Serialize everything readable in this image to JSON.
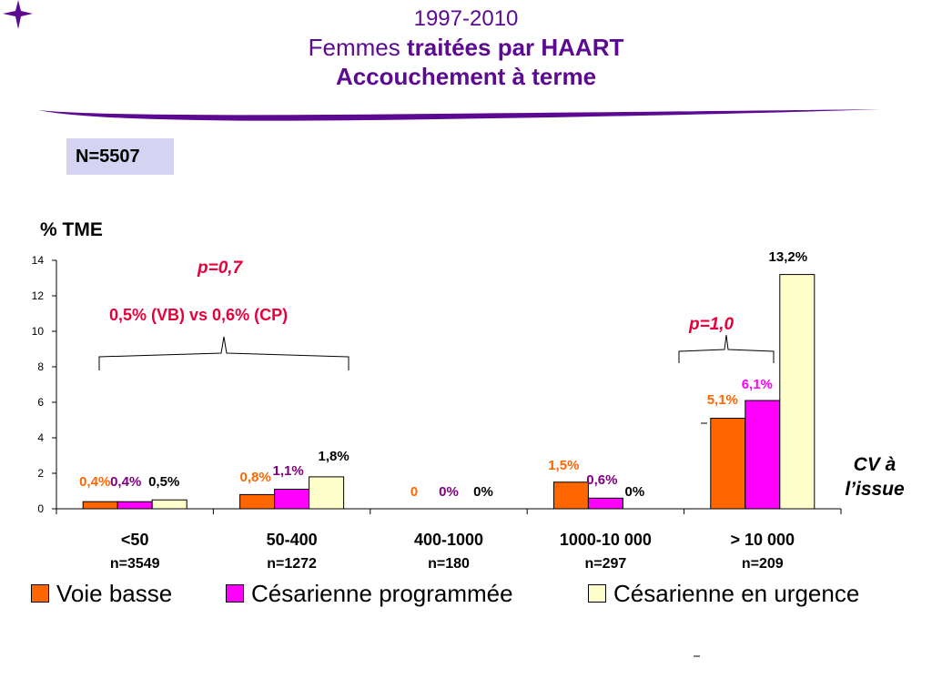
{
  "slide": {
    "title_line1": "1997-2010",
    "title_line2_plain": "Femmes ",
    "title_line2_bold": "traitées par HAART",
    "title_line3": "Accouchement à terme",
    "n_total": "N=5507",
    "cv_label_line1": "CV à",
    "cv_label_line2": "l’issue",
    "accent_color": "#5b0a91"
  },
  "annotations": {
    "p_left": "p=0,7",
    "vb_vs_cp": "0,5% (VB) vs 0,6% (CP)",
    "p_right": "p=1,0"
  },
  "chart_data": {
    "type": "bar",
    "ylabel": "% TME",
    "ylim": [
      0,
      14
    ],
    "yticks": [
      0,
      2,
      4,
      6,
      8,
      10,
      12,
      14
    ],
    "categories": [
      "<50",
      "50-400",
      "400-1000",
      "1000-10 000",
      "> 10 000"
    ],
    "category_n": [
      "n=3549",
      "n=1272",
      "n=180",
      "n=297",
      "n=209"
    ],
    "series": [
      {
        "name": "Voie basse",
        "color": "#ff6600",
        "values": [
          0.4,
          0.8,
          0,
          1.5,
          5.1
        ],
        "labels": [
          "0,4%",
          "0,8%",
          "0",
          "1,5%",
          "5,1%"
        ],
        "label_color": "#ff6600"
      },
      {
        "name": "Césarienne programmée",
        "color": "#ff00ff",
        "values": [
          0.4,
          1.1,
          0,
          0.6,
          6.1
        ],
        "labels": [
          "0,4%",
          "1,1%",
          "0%",
          "0,6%",
          "6,1%"
        ],
        "label_colors": [
          "#800080",
          "#800080",
          "#800080",
          "#800080",
          "#ff00ff"
        ]
      },
      {
        "name": "Césarienne en urgence",
        "color": "#ffffcc",
        "values": [
          0.5,
          1.8,
          0,
          0,
          13.2
        ],
        "labels": [
          "0,5%",
          "1,8%",
          "0%",
          "0%",
          "13,2%"
        ],
        "label_color": "#000000"
      }
    ],
    "legend": "bottom",
    "grid": false
  }
}
